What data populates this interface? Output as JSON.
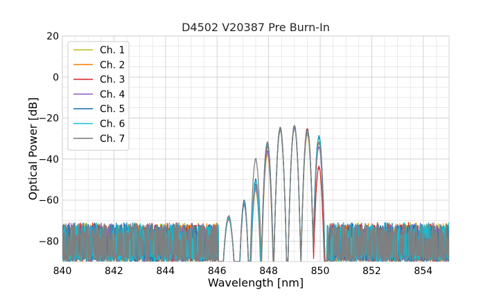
{
  "chart_data": {
    "type": "line",
    "title": "D4502 V20387 Pre Burn-In",
    "xlabel": "Wavelength [nm]",
    "ylabel": "Optical Power [dB]",
    "xlim": [
      840,
      855
    ],
    "ylim": [
      -90,
      20
    ],
    "x_ticks": [
      840,
      842,
      844,
      846,
      848,
      850,
      852,
      854
    ],
    "x_tick_labels": [
      "840",
      "842",
      "844",
      "846",
      "848",
      "850",
      "852",
      "854"
    ],
    "y_ticks": [
      -80,
      -60,
      -40,
      -20,
      0,
      20
    ],
    "y_tick_labels": [
      "−80",
      "−60",
      "−40",
      "−20",
      "0",
      "20"
    ],
    "grid": true,
    "legend": {
      "position": "top-left"
    },
    "peak_wavelengths_nm": [
      846.45,
      847.05,
      847.5,
      847.95,
      848.45,
      849.0,
      849.5,
      849.95
    ],
    "series": [
      {
        "name": "Ch. 1",
        "color": "#bcbd22",
        "peaks_db": [
          -69,
          -62,
          -55,
          -38,
          -26,
          -25,
          -28,
          -30
        ]
      },
      {
        "name": "Ch. 2",
        "color": "#ff7f0e",
        "peaks_db": [
          -69,
          -62,
          -54,
          -37,
          -25,
          -24,
          -27,
          -32
        ]
      },
      {
        "name": "Ch. 3",
        "color": "#d62728",
        "peaks_db": [
          -69,
          -61,
          -52,
          -34,
          -25,
          -24,
          -25,
          -44
        ]
      },
      {
        "name": "Ch. 4",
        "color": "#9467bd",
        "peaks_db": [
          -69,
          -62,
          -54,
          -36,
          -26,
          -25,
          -27,
          -34
        ]
      },
      {
        "name": "Ch. 5",
        "color": "#1f77b4",
        "peaks_db": [
          -69,
          -62,
          -50,
          -32,
          -25,
          -24,
          -26,
          -29
        ]
      },
      {
        "name": "Ch. 6",
        "color": "#17becf",
        "peaks_db": [
          -69,
          -61,
          -51,
          -33,
          -25,
          -24,
          -26,
          -30
        ]
      },
      {
        "name": "Ch. 7",
        "color": "#7f7f7f",
        "peaks_db": [
          -68,
          -60,
          -40,
          -32,
          -25,
          -24,
          -26,
          -32
        ]
      }
    ],
    "noise_floor_db": [
      -90,
      -72
    ]
  }
}
